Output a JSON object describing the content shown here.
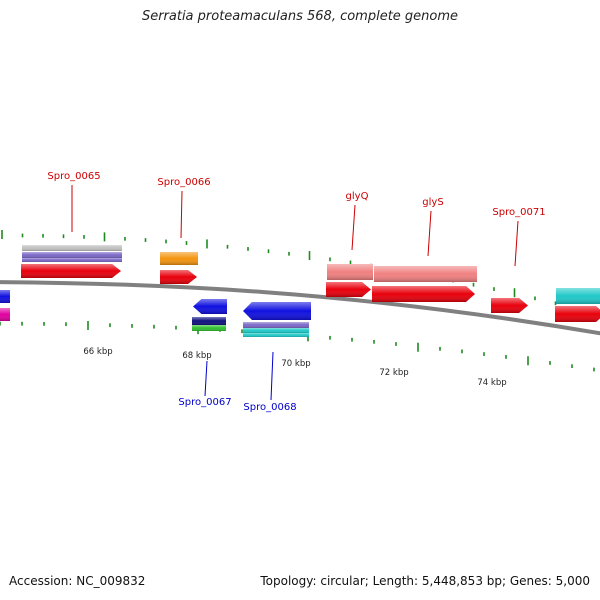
{
  "title": "Serratia proteamaculans 568, complete genome",
  "footer": {
    "accession": "Accession: NC_009832",
    "summary": "Topology: circular; Length: 5,448,853 bp; Genes: 5,000"
  },
  "colors": {
    "backbone": "#808080",
    "forward_label": "#cc0000",
    "reverse_label": "#0000cc",
    "tick": "#1f8a1f",
    "gene_red": "#e8000c",
    "gene_salmon": "#f08080",
    "gene_blue": "#1010e0",
    "gene_cyan": "#20c8c8",
    "gene_orange": "#f39410",
    "gene_gray": "#c0c0c0",
    "gene_lavender": "#7b68c8",
    "gene_navy": "#101080",
    "gene_green": "#30c030",
    "gene_magenta": "#e000a0"
  },
  "scale_labels": [
    "66 kbp",
    "68 kbp",
    "70 kbp",
    "72 kbp",
    "74 kbp"
  ],
  "gene_labels": [
    {
      "text": "Spro_0065",
      "strand": "forward"
    },
    {
      "text": "Spro_0066",
      "strand": "forward"
    },
    {
      "text": "glyQ",
      "strand": "forward"
    },
    {
      "text": "glyS",
      "strand": "forward"
    },
    {
      "text": "Spro_0071",
      "strand": "forward"
    },
    {
      "text": "Spro_0067",
      "strand": "reverse"
    },
    {
      "text": "Spro_0068",
      "strand": "reverse"
    }
  ]
}
